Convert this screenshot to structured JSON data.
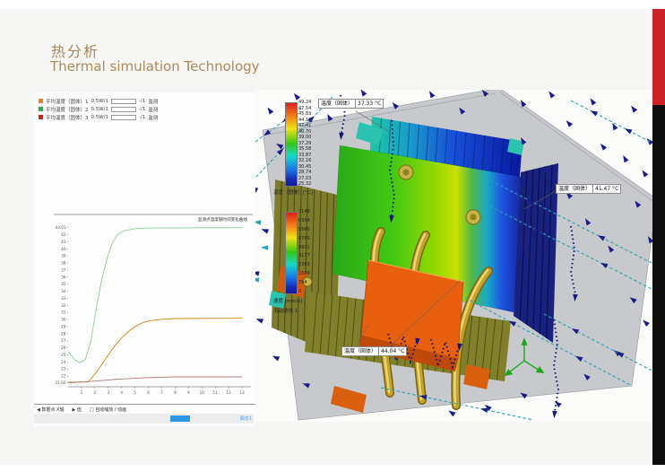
{
  "slide": {
    "title_zh": "热分析",
    "title_en": "Thermal simulation Technology"
  },
  "chart_window": {
    "legend": [
      {
        "color": "#f58220",
        "label": "平均温度（固体）1",
        "power": "0.5W/1",
        "frac": "-/1",
        "status": "监测"
      },
      {
        "color": "#22b14c",
        "label": "平均温度（固体）2",
        "power": "0.5W/1",
        "frac": "-/1",
        "status": "监测"
      },
      {
        "color": "#d12020",
        "label": "平均温度（固体）3",
        "power": "0.5W/1",
        "frac": "-/1",
        "status": "监测"
      }
    ],
    "toolbar_items": [
      "◀ 数据点 X轴",
      "▶ 值",
      "□ 自动缩放 / 动画"
    ],
    "status_link": "瞬态1"
  },
  "chart_data": {
    "type": "line",
    "title": "监测点温度随时间变化曲线",
    "xlabel": "",
    "ylabel": "",
    "xlim": [
      0,
      13.4
    ],
    "ylim": [
      20.5,
      43.6
    ],
    "grid": false,
    "legend_position": "top-left",
    "xticks": [
      "1",
      "2",
      "3",
      "4",
      "5",
      "6",
      "7",
      "8",
      "9",
      "10",
      "11",
      "12",
      "13"
    ],
    "yticks": [
      "43.01",
      "42",
      "41",
      "40",
      "39",
      "38",
      "37",
      "36",
      "35",
      "34",
      "33",
      "32",
      "31",
      "30",
      "29",
      "28",
      "27",
      "26",
      "25",
      "24",
      "23",
      "22",
      "21.04"
    ],
    "series": [
      {
        "name": "平均温度（固体）2",
        "color": "#8fd08f",
        "points": [
          [
            0,
            25.5
          ],
          [
            0.5,
            24.3
          ],
          [
            0.9,
            23.9
          ],
          [
            1.3,
            24.4
          ],
          [
            1.7,
            27.0
          ],
          [
            2.1,
            31.5
          ],
          [
            2.5,
            35.5
          ],
          [
            2.9,
            38.6
          ],
          [
            3.3,
            40.8
          ],
          [
            3.7,
            42.0
          ],
          [
            4.2,
            42.6
          ],
          [
            5,
            42.85
          ],
          [
            6,
            42.95
          ],
          [
            13,
            43.0
          ]
        ]
      },
      {
        "name": "平均温度（固体）1",
        "color": "#d58512",
        "points": [
          [
            0,
            21.15
          ],
          [
            1.5,
            21.2
          ],
          [
            2,
            22.3
          ],
          [
            2.5,
            23.6
          ],
          [
            3,
            25.0
          ],
          [
            3.5,
            26.3
          ],
          [
            4,
            27.4
          ],
          [
            4.5,
            28.3
          ],
          [
            5,
            29.0
          ],
          [
            5.5,
            29.5
          ],
          [
            6,
            29.8
          ],
          [
            7,
            30.05
          ],
          [
            8,
            30.15
          ],
          [
            13,
            30.2
          ]
        ]
      },
      {
        "name": "平均温度（固体）3",
        "color": "#b07a7a",
        "points": [
          [
            0,
            21.05
          ],
          [
            2,
            21.3
          ],
          [
            4,
            21.6
          ],
          [
            6,
            21.8
          ],
          [
            8,
            21.9
          ],
          [
            13,
            21.9
          ]
        ]
      }
    ]
  },
  "view3d": {
    "temp_scale": {
      "values": [
        "49.24",
        "47.54",
        "45.83",
        "44.12",
        "42.41",
        "40.70",
        "39.00",
        "37.29",
        "35.58",
        "33.87",
        "32.16",
        "30.45",
        "28.74",
        "27.03",
        "25.32"
      ],
      "unit_label": "温度（固体）[°C]"
    },
    "velocity_scale": {
      "values": [
        "7148",
        "6354",
        "5560",
        "4765",
        "3971",
        "3177",
        "2383",
        "1589",
        "794",
        "0"
      ],
      "unit_label": "速度 [mm/s]",
      "sublabel": "流动迹线 1"
    },
    "callouts": [
      {
        "label": "温度（固体）",
        "value": "37.33 °C"
      },
      {
        "label": "温度（固体）",
        "value": "41.47 °C"
      },
      {
        "label": "温度（固体）",
        "value": "44.04 °C"
      }
    ]
  }
}
